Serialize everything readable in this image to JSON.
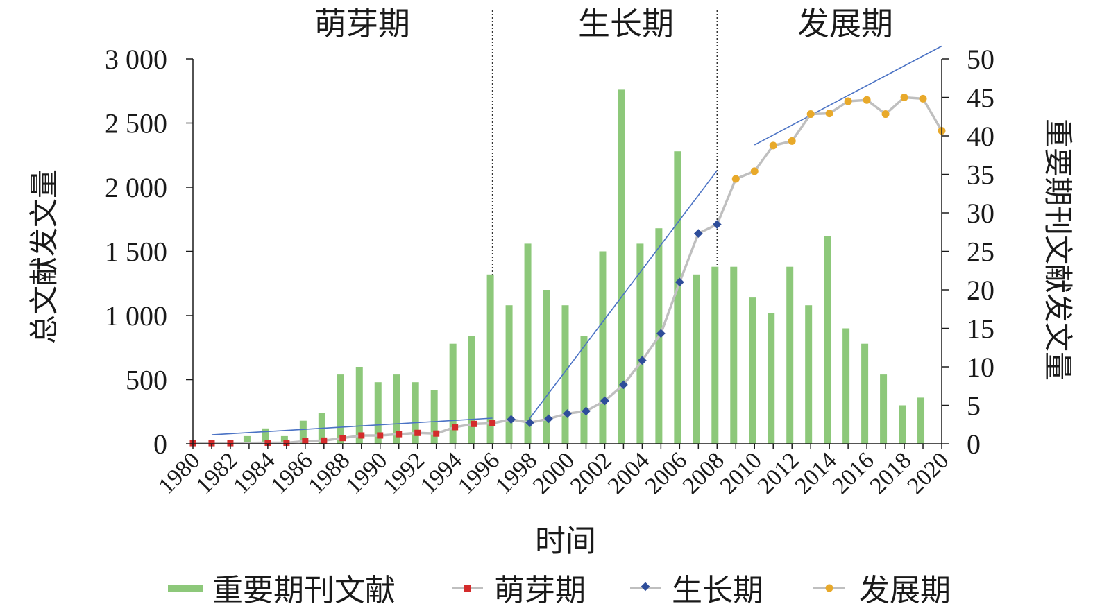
{
  "chart_data": {
    "type": "bar",
    "period_labels": [
      "萌芽期",
      "生长期",
      "发展期"
    ],
    "period_boundaries": [
      1996,
      2008
    ],
    "xlabel": "时间",
    "ylabel_left": "总文献发文量",
    "ylabel_right": "重要期刊文献发文量",
    "left_axis": {
      "range": [
        0,
        3000
      ],
      "ticks": [
        0,
        500,
        1000,
        1500,
        2000,
        2500,
        3000
      ],
      "tick_labels": [
        "0",
        "500",
        "1 000",
        "1 500",
        "2 000",
        "2 500",
        "3 000"
      ]
    },
    "right_axis": {
      "range": [
        0,
        50
      ],
      "ticks": [
        0,
        5,
        10,
        15,
        20,
        25,
        30,
        35,
        40,
        45,
        50
      ],
      "tick_labels": [
        "0",
        "5",
        "10",
        "15",
        "20",
        "25",
        "30",
        "35",
        "40",
        "45",
        "50"
      ]
    },
    "x_ticks": [
      1980,
      1982,
      1984,
      1986,
      1988,
      1990,
      1992,
      1994,
      1996,
      1998,
      2000,
      2002,
      2004,
      2006,
      2008,
      2010,
      2012,
      2014,
      2016,
      2018,
      2020
    ],
    "x_tick_labels": [
      "1980",
      "1982",
      "1984",
      "1986",
      "1988",
      "1990",
      "1992",
      "1994",
      "1996",
      "1998",
      "2000",
      "2002",
      "2004",
      "2006",
      "2008",
      "2010",
      "2012",
      "2014",
      "2016",
      "2018",
      "2020"
    ],
    "legend": [
      "重要期刊文献",
      "萌芽期",
      "生长期",
      "发展期"
    ],
    "legend_position": "bottom",
    "colors": {
      "bars": "#8dc87a",
      "line": "#bfbfbf",
      "embryonic": "#d42b2b",
      "growth": "#2e4d9a",
      "development": "#e8a92a",
      "trend": "#4a72c4",
      "divider": "#333333"
    },
    "series": [
      {
        "name": "重要期刊文献",
        "axis": "right",
        "type": "bar",
        "x": [
          1980,
          1981,
          1982,
          1983,
          1984,
          1985,
          1986,
          1987,
          1988,
          1989,
          1990,
          1991,
          1992,
          1993,
          1994,
          1995,
          1996,
          1997,
          1998,
          1999,
          2000,
          2001,
          2002,
          2003,
          2004,
          2005,
          2006,
          2007,
          2008,
          2009,
          2010,
          2011,
          2012,
          2013,
          2014,
          2015,
          2016,
          2017,
          2018,
          2019,
          2020
        ],
        "values": [
          0,
          0,
          0,
          1,
          2,
          1,
          3,
          4,
          9,
          10,
          8,
          9,
          8,
          7,
          13,
          14,
          22,
          18,
          26,
          20,
          18,
          14,
          25,
          46,
          26,
          28,
          38,
          22,
          23,
          23,
          19,
          17,
          23,
          18,
          27,
          15,
          13,
          9,
          5,
          6,
          0
        ]
      },
      {
        "name": "萌芽期",
        "axis": "left",
        "type": "line",
        "x": [
          1980,
          1981,
          1982,
          1984,
          1985,
          1986,
          1987,
          1988,
          1989,
          1990,
          1991,
          1992,
          1993,
          1994,
          1995,
          1996
        ],
        "values": [
          5,
          5,
          5,
          8,
          8,
          20,
          25,
          45,
          65,
          65,
          75,
          85,
          80,
          130,
          155,
          160
        ]
      },
      {
        "name": "生长期",
        "axis": "left",
        "type": "line",
        "x": [
          1997,
          1998,
          1999,
          2000,
          2001,
          2002,
          2003,
          2004,
          2005,
          2006,
          2007,
          2008
        ],
        "values": [
          190,
          165,
          195,
          235,
          255,
          335,
          460,
          650,
          860,
          1260,
          1640,
          1710
        ]
      },
      {
        "name": "发展期",
        "axis": "left",
        "type": "line",
        "x": [
          2009,
          2010,
          2011,
          2012,
          2013,
          2014,
          2015,
          2016,
          2017,
          2018,
          2019,
          2020
        ],
        "values": [
          2065,
          2125,
          2325,
          2360,
          2570,
          2575,
          2670,
          2680,
          2570,
          2700,
          2690,
          2440
        ]
      }
    ],
    "trend_lines": [
      {
        "x": [
          1981,
          1996
        ],
        "y": [
          70,
          200
        ]
      },
      {
        "x": [
          1998,
          2008
        ],
        "y": [
          200,
          2130
        ]
      },
      {
        "x": [
          2010,
          2020
        ],
        "y": [
          2330,
          3100
        ]
      }
    ]
  }
}
